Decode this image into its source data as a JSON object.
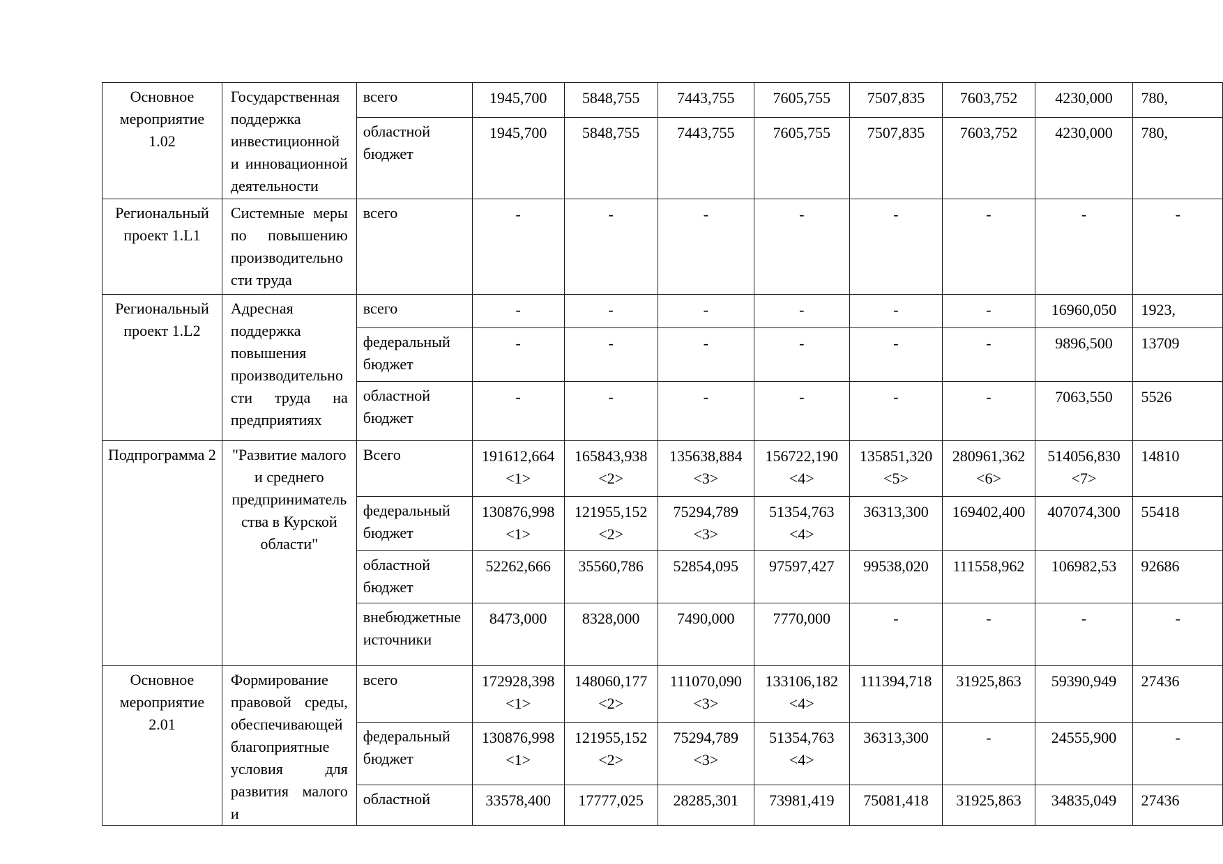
{
  "document": {
    "kind": "budget-financing-table-fragment",
    "language": "ru",
    "table": {
      "sections": [
        {
          "name": "Основное мероприятие 1.02",
          "description": "Государственная поддержка инвестиционной и инновационной деятельности",
          "desc_align": "justify",
          "rows": [
            {
              "source": "всего",
              "values": [
                "1945,700",
                "5848,755",
                "7443,755",
                "7605,755",
                "7507,835",
                "7603,752",
                "4230,000",
                "780,"
              ]
            },
            {
              "source": "областной бюджет",
              "values": [
                "1945,700",
                "5848,755",
                "7443,755",
                "7605,755",
                "7507,835",
                "7603,752",
                "4230,000",
                "780,"
              ]
            }
          ]
        },
        {
          "name": "Региональный проект 1.L1",
          "description": "Системные меры по повышению производительности труда",
          "desc_align": "justify",
          "rows": [
            {
              "source": "всего",
              "values": [
                "-",
                "-",
                "-",
                "-",
                "-",
                "-",
                "-",
                "-"
              ]
            }
          ]
        },
        {
          "name": "Региональный проект 1.L2",
          "description": "Адресная поддержка повышения производительности труда на предприятиях",
          "desc_align": "justify",
          "rows": [
            {
              "source": "всего",
              "values": [
                "-",
                "-",
                "-",
                "-",
                "-",
                "-",
                "16960,050",
                "1923,"
              ]
            },
            {
              "source": "федеральный бюджет",
              "values": [
                "-",
                "-",
                "-",
                "-",
                "-",
                "-",
                "9896,500",
                "13709"
              ]
            },
            {
              "source": "областной бюджет",
              "values": [
                "-",
                "-",
                "-",
                "-",
                "-",
                "-",
                "7063,550",
                "5526"
              ]
            }
          ]
        },
        {
          "name": "Подпрограмма 2",
          "description": "\"Развитие малого и среднего предпринимательства в Курской области\"",
          "desc_align": "center",
          "rows": [
            {
              "source": "Всего",
              "values": [
                "191612,664\n<1>",
                "165843,938\n<2>",
                "135638,884\n<3>",
                "156722,190\n<4>",
                "135851,320\n<5>",
                "280961,362\n<6>",
                "514056,830\n<7>",
                "14810"
              ]
            },
            {
              "source": "федеральный бюджет",
              "values": [
                "130876,998\n<1>",
                "121955,152\n<2>",
                "75294,789\n<3>",
                "51354,763\n<4>",
                "36313,300",
                "169402,400",
                "407074,300",
                "55418"
              ]
            },
            {
              "source": "областной бюджет",
              "values": [
                "52262,666",
                "35560,786",
                "52854,095",
                "97597,427",
                "99538,020",
                "111558,962",
                "106982,53",
                "92686"
              ]
            },
            {
              "source": "внебюджетные источники",
              "values": [
                "8473,000",
                "8328,000",
                "7490,000",
                "7770,000",
                "-",
                "-",
                "-",
                "-"
              ]
            }
          ]
        },
        {
          "name": "Основное мероприятие 2.01",
          "description": "Формирование правовой среды, обеспечивающей благоприятные условия для развития малого и",
          "desc_align": "justify",
          "rows": [
            {
              "source": "всего",
              "values": [
                "172928,398\n<1>",
                "148060,177\n<2>",
                "111070,090\n<3>",
                "133106,182\n<4>",
                "111394,718",
                "31925,863",
                "59390,949",
                "27436"
              ]
            },
            {
              "source": "федеральный бюджет",
              "values": [
                "130876,998\n<1>",
                "121955,152\n<2>",
                "75294,789\n<3>",
                "51354,763\n<4>",
                "36313,300",
                "-",
                "24555,900",
                "-"
              ]
            },
            {
              "source": "областной",
              "values": [
                "33578,400",
                "17777,025",
                "28285,301",
                "73981,419",
                "75081,418",
                "31925,863",
                "34835,049",
                "27436"
              ]
            }
          ]
        }
      ]
    }
  }
}
